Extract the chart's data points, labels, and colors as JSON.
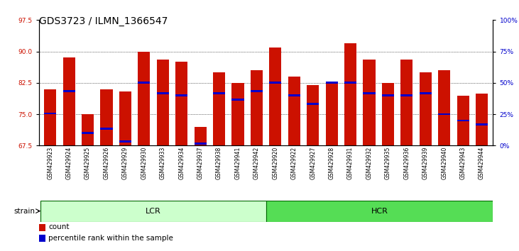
{
  "title": "GDS3723 / ILMN_1366547",
  "samples": [
    "GSM429923",
    "GSM429924",
    "GSM429925",
    "GSM429926",
    "GSM429929",
    "GSM429930",
    "GSM429933",
    "GSM429934",
    "GSM429937",
    "GSM429938",
    "GSM429941",
    "GSM429942",
    "GSM429920",
    "GSM429922",
    "GSM429927",
    "GSM429928",
    "GSM429931",
    "GSM429932",
    "GSM429935",
    "GSM429936",
    "GSM429939",
    "GSM429940",
    "GSM429943",
    "GSM429944"
  ],
  "bar_heights": [
    81.0,
    88.5,
    75.0,
    81.0,
    80.5,
    90.0,
    88.0,
    87.5,
    72.0,
    85.0,
    82.5,
    85.5,
    91.0,
    84.0,
    82.0,
    82.5,
    92.0,
    88.0,
    82.5,
    88.0,
    85.0,
    85.5,
    79.5,
    80.0
  ],
  "blue_marker_positions": [
    75.2,
    80.5,
    70.5,
    71.5,
    68.5,
    82.5,
    80.0,
    79.5,
    68.0,
    80.0,
    78.5,
    80.5,
    82.5,
    79.5,
    77.5,
    82.5,
    82.5,
    80.0,
    79.5,
    79.5,
    80.0,
    75.0,
    73.5,
    72.5
  ],
  "lcr_color": "#ccffcc",
  "hcr_color": "#55dd55",
  "bar_color": "#cc1100",
  "blue_color": "#0000cc",
  "ylim": [
    67.5,
    97.5
  ],
  "yticks_left": [
    67.5,
    75.0,
    82.5,
    90.0,
    97.5
  ],
  "yticks_right": [
    0,
    25,
    50,
    75,
    100
  ],
  "ylabel_left_color": "#cc1100",
  "ylabel_right_color": "#0000cc",
  "title_fontsize": 10,
  "tick_fontsize": 6.5,
  "n_lcr": 12,
  "n_hcr": 12
}
